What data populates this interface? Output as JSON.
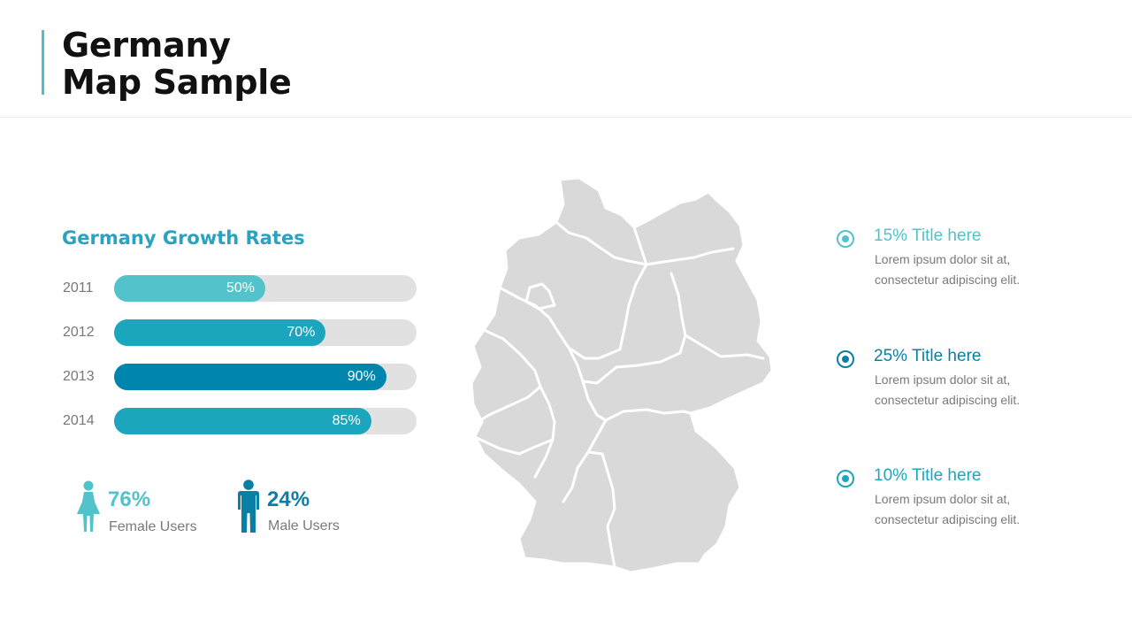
{
  "header": {
    "title_line1": "Germany",
    "title_line2": "Map Sample"
  },
  "growth": {
    "title": "Germany Growth Rates",
    "bars": [
      {
        "year": "2011",
        "percent": 50,
        "label": "50%",
        "color": "#52c2cb"
      },
      {
        "year": "2012",
        "percent": 70,
        "label": "70%",
        "color": "#1ba6be"
      },
      {
        "year": "2013",
        "percent": 90,
        "label": "90%",
        "color": "#0086ad"
      },
      {
        "year": "2014",
        "percent": 85,
        "label": "85%",
        "color": "#1ba6be"
      }
    ]
  },
  "users": {
    "female": {
      "value": "76%",
      "caption": "Female Users",
      "color": "#52c2cb",
      "icon": "female-person-icon"
    },
    "male": {
      "value": "24%",
      "caption": "Male Users",
      "color": "#0a7fa6",
      "icon": "male-person-icon"
    }
  },
  "map": {
    "region": "Germany",
    "fill_color": "#d9d9d9",
    "border_color": "#ffffff"
  },
  "legend": [
    {
      "title": "15% Title here",
      "desc_line1": "Lorem ipsum dolor sit at,",
      "desc_line2": "consectetur adipiscing elit.",
      "color": "#52c2cb",
      "icon": "radio-dot-icon"
    },
    {
      "title": "25% Title here",
      "desc_line1": "Lorem ipsum dolor sit at,",
      "desc_line2": "consectetur adipiscing elit.",
      "color": "#0a7fa6",
      "icon": "radio-dot-icon"
    },
    {
      "title": "10% Title here",
      "desc_line1": "Lorem ipsum dolor sit at,",
      "desc_line2": "consectetur adipiscing elit.",
      "color": "#1ba6be",
      "icon": "radio-dot-icon"
    }
  ]
}
